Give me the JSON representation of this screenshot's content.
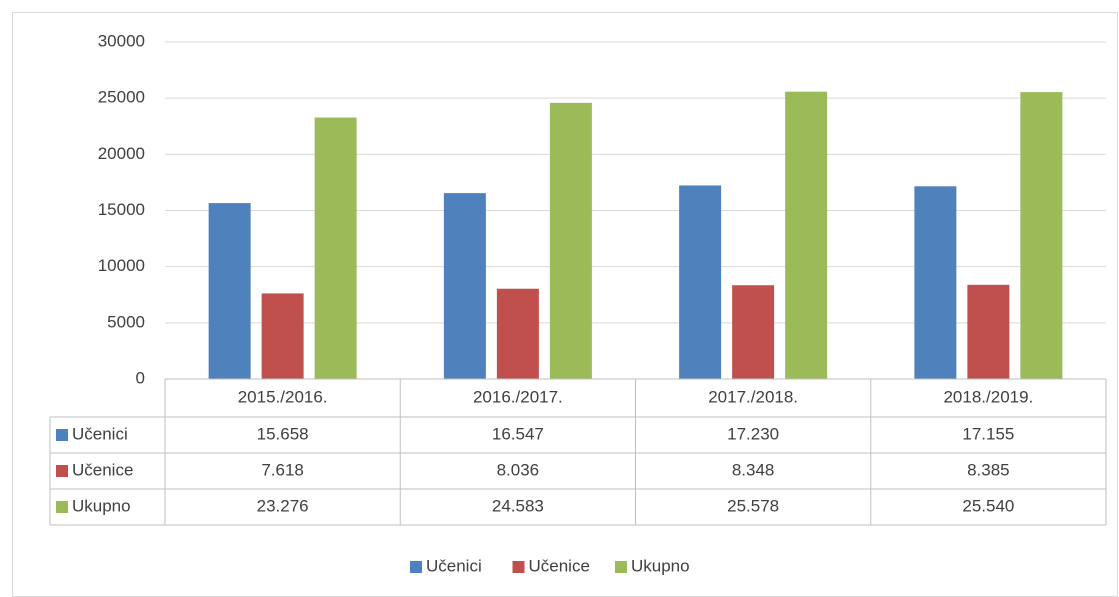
{
  "chart_data": {
    "type": "bar",
    "categories": [
      "2015./2016.",
      "2016./2017.",
      "2017./2018.",
      "2018./2019."
    ],
    "series": [
      {
        "name": "Učenici",
        "color": "#4f81bd",
        "values": [
          15658,
          16547,
          17230,
          17155
        ],
        "value_labels": [
          "15.658",
          "16.547",
          "17.230",
          "17.155"
        ]
      },
      {
        "name": "Učenice",
        "color": "#c0504d",
        "values": [
          7618,
          8036,
          8348,
          8385
        ],
        "value_labels": [
          "7.618",
          "8.036",
          "8.348",
          "8.385"
        ]
      },
      {
        "name": "Ukupno",
        "color": "#9bbb59",
        "values": [
          23276,
          24583,
          25578,
          25540
        ],
        "value_labels": [
          "23.276",
          "24.583",
          "25.578",
          "25.540"
        ]
      }
    ],
    "ylim": [
      0,
      30000
    ],
    "yticks": [
      0,
      5000,
      10000,
      15000,
      20000,
      25000,
      30000
    ],
    "grid": true,
    "legend": "bottom"
  }
}
